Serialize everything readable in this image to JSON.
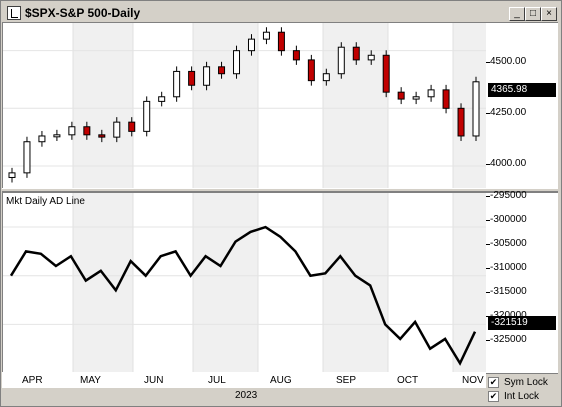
{
  "window": {
    "title": "$SPX-S&P 500-Daily",
    "buttons": {
      "minimize": "_",
      "maximize": "□",
      "close": "×"
    }
  },
  "price_pane": {
    "last_value": "4365.98",
    "ticks": [
      "4500.00",
      "4250.00",
      "4000.00"
    ]
  },
  "ad_pane": {
    "label": "Mkt Daily AD Line",
    "last_value": "-321519",
    "ticks": [
      "-295000",
      "-300000",
      "-305000",
      "-310000",
      "-315000",
      "-320000",
      "-325000"
    ]
  },
  "x_axis": {
    "months": [
      "APR",
      "MAY",
      "JUN",
      "JUL",
      "AUG",
      "SEP",
      "OCT",
      "NOV"
    ],
    "year": "2023"
  },
  "options": {
    "sym_lock": {
      "label": "Sym Lock",
      "checked": true
    },
    "int_lock": {
      "label": "Int Lock",
      "checked": true
    }
  },
  "colors": {
    "up_candle": "#ffffff",
    "down_candle": "#c00000",
    "line": "#000000"
  },
  "chart_data": [
    {
      "type": "candlestick",
      "title": "$SPX-S&P 500-Daily",
      "ylim": [
        3900,
        4620
      ],
      "x": [
        "2023-03-27",
        "2023-04-03",
        "2023-04-10",
        "2023-04-17",
        "2023-04-24",
        "2023-05-01",
        "2023-05-08",
        "2023-05-15",
        "2023-05-22",
        "2023-05-29",
        "2023-06-05",
        "2023-06-12",
        "2023-06-19",
        "2023-06-26",
        "2023-07-03",
        "2023-07-10",
        "2023-07-17",
        "2023-07-24",
        "2023-07-31",
        "2023-08-07",
        "2023-08-14",
        "2023-08-21",
        "2023-08-28",
        "2023-09-05",
        "2023-09-11",
        "2023-09-18",
        "2023-09-25",
        "2023-10-02",
        "2023-10-09",
        "2023-10-16",
        "2023-10-23",
        "2023-10-30"
      ],
      "close": [
        3970,
        4105,
        4130,
        4135,
        4170,
        4135,
        4125,
        4190,
        4150,
        4280,
        4300,
        4410,
        4350,
        4430,
        4400,
        4500,
        4550,
        4580,
        4500,
        4460,
        4370,
        4400,
        4515,
        4460,
        4480,
        4320,
        4290,
        4300,
        4330,
        4250,
        4130,
        4365
      ]
    },
    {
      "type": "line",
      "title": "Mkt Daily AD Line",
      "ylim": [
        -330000,
        -293000
      ],
      "x": [
        "2023-03-27",
        "2023-04-03",
        "2023-04-10",
        "2023-04-17",
        "2023-04-24",
        "2023-05-01",
        "2023-05-08",
        "2023-05-15",
        "2023-05-22",
        "2023-05-29",
        "2023-06-05",
        "2023-06-12",
        "2023-06-19",
        "2023-06-26",
        "2023-07-03",
        "2023-07-10",
        "2023-07-17",
        "2023-07-24",
        "2023-07-31",
        "2023-08-07",
        "2023-08-14",
        "2023-08-21",
        "2023-08-28",
        "2023-09-05",
        "2023-09-11",
        "2023-09-18",
        "2023-09-25",
        "2023-10-02",
        "2023-10-09",
        "2023-10-16",
        "2023-10-23",
        "2023-10-30"
      ],
      "values": [
        -310000,
        -305000,
        -305500,
        -308000,
        -306000,
        -311000,
        -309000,
        -313000,
        -307000,
        -310000,
        -306000,
        -305000,
        -310000,
        -306000,
        -308000,
        -303000,
        -301000,
        -300000,
        -302000,
        -305000,
        -310000,
        -309500,
        -306000,
        -310000,
        -312000,
        -320000,
        -323000,
        -319500,
        -325000,
        -323000,
        -328000,
        -321519
      ]
    }
  ]
}
